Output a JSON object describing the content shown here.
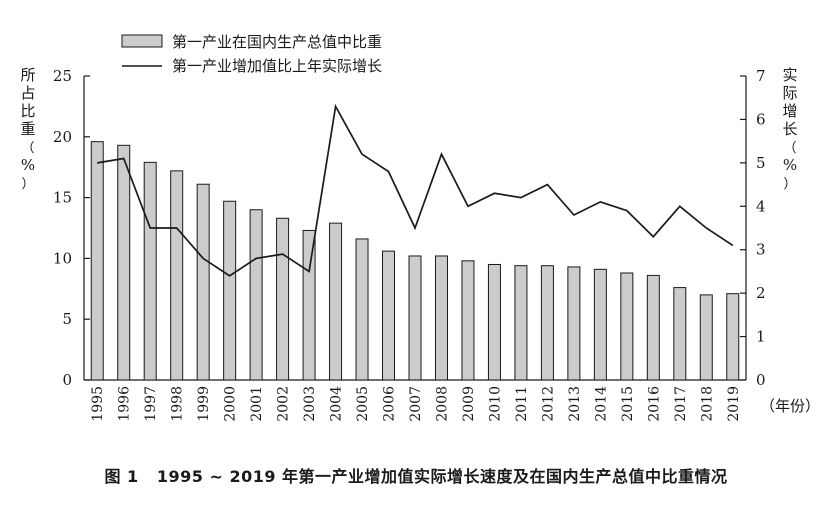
{
  "caption": {
    "figure_no": "图 1",
    "text": "1995 ~ 2019 年第一产业增加值实际增长速度及在国内生产总值中比重情况"
  },
  "chart_data": {
    "type": "bar",
    "categories": [
      "1995",
      "1996",
      "1997",
      "1998",
      "1999",
      "2000",
      "2001",
      "2002",
      "2003",
      "2004",
      "2005",
      "2006",
      "2007",
      "2008",
      "2009",
      "2010",
      "2011",
      "2012",
      "2013",
      "2014",
      "2015",
      "2016",
      "2017",
      "2018",
      "2019"
    ],
    "series": [
      {
        "name": "第一产业在国内生产总值中比重",
        "type": "bar",
        "axis": "left",
        "values": [
          19.6,
          19.3,
          17.9,
          17.2,
          16.1,
          14.7,
          14.0,
          13.3,
          12.3,
          12.9,
          11.6,
          10.6,
          10.2,
          10.2,
          9.8,
          9.5,
          9.4,
          9.4,
          9.3,
          9.1,
          8.8,
          8.6,
          7.6,
          7.0,
          7.1
        ],
        "color": "#cccccc"
      },
      {
        "name": "第一产业增加值比上年实际增长",
        "type": "line",
        "axis": "right",
        "values": [
          5.0,
          5.1,
          3.5,
          3.5,
          2.8,
          2.4,
          2.8,
          2.9,
          2.5,
          6.3,
          5.2,
          4.8,
          3.5,
          5.2,
          4.0,
          4.3,
          4.2,
          4.5,
          3.8,
          4.1,
          3.9,
          3.3,
          4.0,
          3.5,
          3.1
        ],
        "color": "#1a1a1a"
      }
    ],
    "left_axis": {
      "label": "所占比重（%）",
      "ylim": [
        0,
        25
      ],
      "ticks": [
        "0",
        "5",
        "10",
        "15",
        "20",
        "25"
      ]
    },
    "right_axis": {
      "label": "实际增长（%）",
      "ylim": [
        0,
        7
      ],
      "ticks": [
        "0",
        "1",
        "2",
        "3",
        "4",
        "5",
        "6",
        "7"
      ]
    },
    "x_unit_label": "（年份）",
    "legend_placement": "top",
    "grid": false
  }
}
